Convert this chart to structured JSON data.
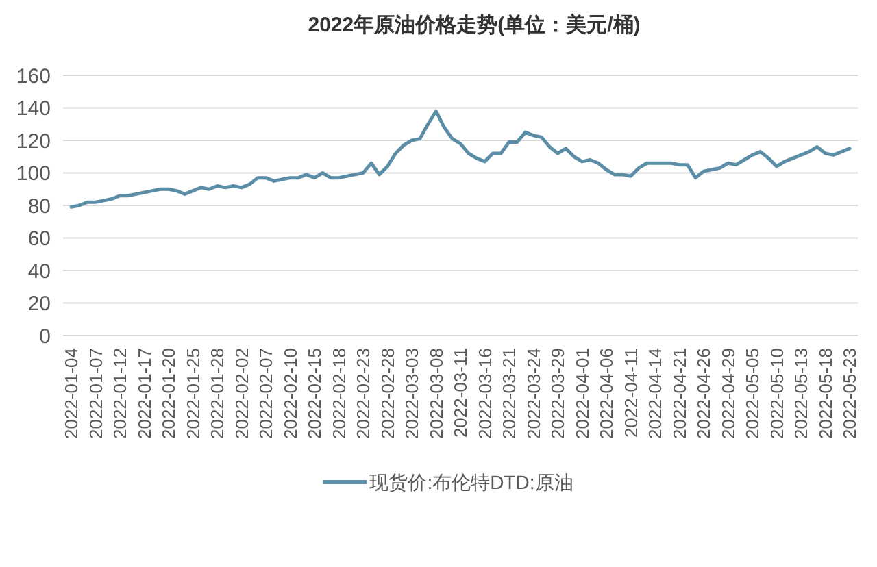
{
  "chart_data": {
    "type": "line",
    "title": "2022年原油价格走势(单位：美元/桶)",
    "categories": [
      "2022-01-04",
      null,
      null,
      "2022-01-07",
      null,
      null,
      "2022-01-12",
      null,
      null,
      "2022-01-17",
      null,
      null,
      "2022-01-20",
      null,
      null,
      "2022-01-25",
      null,
      null,
      "2022-01-28",
      null,
      null,
      "2022-02-02",
      null,
      null,
      "2022-02-07",
      null,
      null,
      "2022-02-10",
      null,
      null,
      "2022-02-15",
      null,
      null,
      "2022-02-18",
      null,
      null,
      "2022-02-23",
      null,
      null,
      "2022-02-28",
      null,
      null,
      "2022-03-03",
      null,
      null,
      "2022-03-08",
      null,
      null,
      "2022-03-11",
      null,
      null,
      "2022-03-16",
      null,
      null,
      "2022-03-21",
      null,
      null,
      "2022-03-24",
      null,
      null,
      "2022-03-29",
      null,
      null,
      "2022-04-01",
      null,
      null,
      "2022-04-06",
      null,
      null,
      "2022-04-11",
      null,
      null,
      "2022-04-14",
      null,
      null,
      "2022-04-21",
      null,
      null,
      "2022-04-26",
      null,
      null,
      "2022-04-29",
      null,
      null,
      "2022-05-05",
      null,
      null,
      "2022-05-10",
      null,
      null,
      "2022-05-13",
      null,
      null,
      "2022-05-18",
      null,
      null,
      "2022-05-23"
    ],
    "series": [
      {
        "name": "现货价:布伦特DTD:原油",
        "color": "#5b8ea6",
        "values": [
          79,
          80,
          82,
          82,
          83,
          84,
          86,
          86,
          87,
          88,
          89,
          90,
          90,
          89,
          87,
          89,
          91,
          90,
          92,
          91,
          92,
          91,
          93,
          97,
          97,
          95,
          96,
          97,
          97,
          99,
          97,
          100,
          97,
          97,
          98,
          99,
          100,
          106,
          99,
          104,
          112,
          117,
          120,
          121,
          130,
          138,
          128,
          121,
          118,
          112,
          109,
          107,
          112,
          112,
          119,
          119,
          125,
          123,
          122,
          116,
          112,
          115,
          110,
          107,
          108,
          106,
          102,
          99,
          99,
          98,
          103,
          106,
          106,
          106,
          106,
          105,
          105,
          97,
          101,
          102,
          103,
          106,
          105,
          108,
          111,
          113,
          109,
          104,
          107,
          109,
          111,
          113,
          116,
          112,
          111,
          113,
          115
        ]
      }
    ],
    "ylim": [
      0,
      160
    ],
    "yticks": [
      0,
      20,
      40,
      60,
      80,
      100,
      120,
      140,
      160
    ],
    "grid": "y",
    "legend": "bottom"
  }
}
